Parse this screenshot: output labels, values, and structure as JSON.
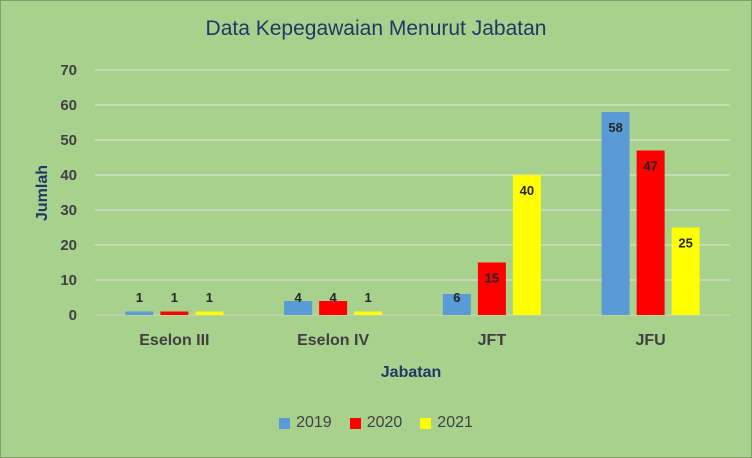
{
  "chart_data": {
    "type": "bar",
    "title": "Data Kepegawaian Menurut Jabatan",
    "xlabel": "Jabatan",
    "ylabel": "Jumlah",
    "categories": [
      "Eselon III",
      "Eselon IV",
      "JFT",
      "JFU"
    ],
    "yticks": [
      "0",
      "10",
      "20",
      "30",
      "40",
      "50",
      "60",
      "70"
    ],
    "ylim": [
      0,
      70
    ],
    "grid": true,
    "legend_position": "bottom",
    "series": [
      {
        "name": "2019",
        "color": "#5B9BD5",
        "values": [
          1,
          4,
          6,
          58
        ]
      },
      {
        "name": "2020",
        "color": "#FF0000",
        "values": [
          1,
          4,
          15,
          47
        ]
      },
      {
        "name": "2021",
        "color": "#FFFF00",
        "values": [
          1,
          1,
          40,
          25
        ]
      }
    ]
  }
}
